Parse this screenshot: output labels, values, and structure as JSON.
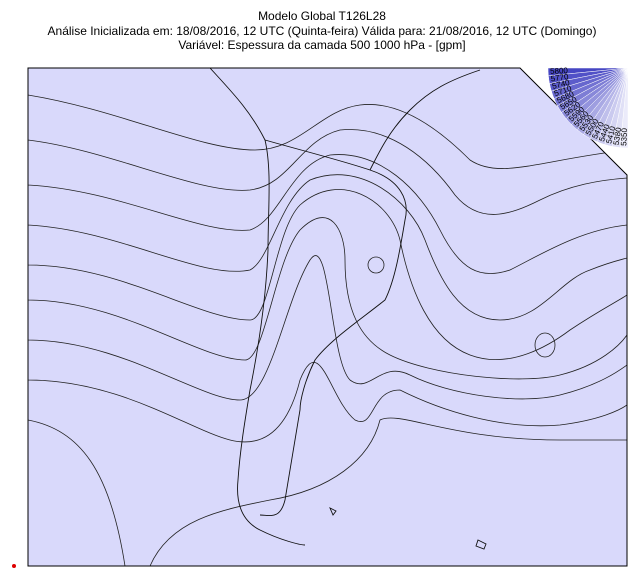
{
  "header": {
    "title": "Modelo Global T126L28",
    "line2": "Análise Inicializada em: 18/08/2016, 12 UTC (Quinta-feira) Válida para: 21/08/2016, 12 UTC (Domingo)",
    "line3": "Variável: Espessura da camada 500 1000 hPa - [gpm]"
  },
  "legend": {
    "labels": [
      "5800",
      "5770",
      "5740",
      "5710",
      "5680",
      "5650",
      "5620",
      "5590",
      "5560",
      "5530",
      "5500",
      "5470",
      "5440",
      "5410",
      "5380",
      "5350"
    ]
  }
}
